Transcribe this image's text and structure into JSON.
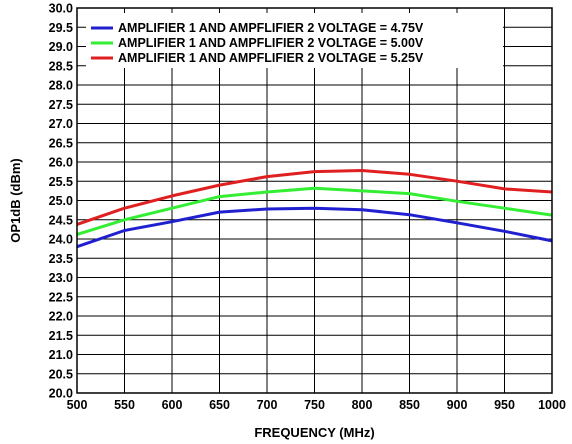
{
  "chart_data": {
    "type": "line",
    "title": "",
    "xlabel": "FREQUENCY (MHz)",
    "ylabel": "OP1dB (dBm)",
    "xlim": [
      500,
      1000
    ],
    "ylim": [
      20.0,
      30.0
    ],
    "x_ticks": [
      "500",
      "550",
      "600",
      "650",
      "700",
      "750",
      "800",
      "850",
      "900",
      "950",
      "1000"
    ],
    "y_ticks": [
      "20.0",
      "20.5",
      "21.0",
      "21.5",
      "22.0",
      "22.5",
      "23.0",
      "23.5",
      "24.0",
      "24.5",
      "25.0",
      "25.5",
      "26.0",
      "26.5",
      "27.0",
      "27.5",
      "28.0",
      "28.5",
      "29.0",
      "29.5",
      "30.0"
    ],
    "grid": true,
    "legend_position": "top",
    "x": [
      500,
      550,
      600,
      650,
      700,
      750,
      800,
      850,
      900,
      950,
      1000
    ],
    "series": [
      {
        "name": "AMPLIFIER 1 AND AMPFLIFIER 2 VOLTAGE = 4.75V",
        "color": "#2020d0",
        "values": [
          23.8,
          24.22,
          24.45,
          24.7,
          24.78,
          24.8,
          24.76,
          24.63,
          24.42,
          24.2,
          23.95
        ]
      },
      {
        "name": "AMPLIFIER 1 AND AMPFLIFIER 2 VOLTAGE = 5.00V",
        "color": "#33ee33",
        "values": [
          24.12,
          24.5,
          24.8,
          25.1,
          25.22,
          25.32,
          25.25,
          25.18,
          24.98,
          24.8,
          24.62
        ]
      },
      {
        "name": "AMPLIFIER 1 AND AMPFLIFIER 2 VOLTAGE = 5.25V",
        "color": "#e02020",
        "values": [
          24.38,
          24.8,
          25.12,
          25.4,
          25.62,
          25.75,
          25.78,
          25.68,
          25.5,
          25.3,
          25.22
        ]
      }
    ]
  }
}
